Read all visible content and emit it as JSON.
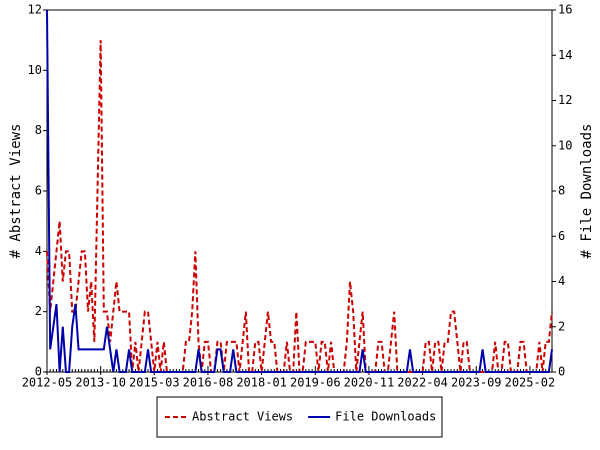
{
  "chart_data": {
    "type": "line",
    "categories": [
      "2012-05",
      null,
      null,
      null,
      null,
      null,
      null,
      null,
      null,
      null,
      null,
      null,
      null,
      null,
      null,
      null,
      null,
      "2013-10",
      null,
      null,
      null,
      null,
      null,
      null,
      null,
      null,
      null,
      null,
      null,
      null,
      null,
      null,
      null,
      null,
      "2015-03",
      null,
      null,
      null,
      null,
      null,
      null,
      null,
      null,
      null,
      null,
      null,
      null,
      null,
      null,
      null,
      null,
      "2016-08",
      null,
      null,
      null,
      null,
      null,
      null,
      null,
      null,
      null,
      null,
      null,
      null,
      null,
      null,
      null,
      null,
      "2018-01",
      null,
      null,
      null,
      null,
      null,
      null,
      null,
      null,
      null,
      null,
      null,
      null,
      null,
      null,
      null,
      null,
      "2019-06",
      null,
      null,
      null,
      null,
      null,
      null,
      null,
      null,
      null,
      null,
      null,
      null,
      null,
      null,
      null,
      null,
      "2020-11",
      null,
      null,
      null,
      null,
      null,
      null,
      null,
      null,
      null,
      null,
      null,
      null,
      null,
      null,
      null,
      null,
      "2022-04",
      null,
      null,
      null,
      null,
      null,
      null,
      null,
      null,
      null,
      null,
      null,
      null,
      null,
      null,
      null,
      null,
      "2023-09",
      null,
      null,
      null,
      null,
      null,
      null,
      null,
      null,
      null,
      null,
      null,
      null,
      null,
      null,
      null,
      null,
      "2025-02",
      null,
      null,
      null,
      null,
      null,
      null,
      null
    ],
    "series": [
      {
        "name": "Abstract Views",
        "color": "#cc0000",
        "dashed": true,
        "axis": "y",
        "values": [
          4,
          2,
          3,
          4,
          5,
          3,
          4,
          4,
          2,
          2,
          3,
          4,
          4,
          2,
          3,
          1,
          6,
          11,
          2,
          2,
          1,
          2,
          3,
          2,
          2,
          2,
          2,
          0,
          1,
          0,
          1,
          2,
          2,
          1,
          0,
          1,
          0,
          1,
          0,
          0,
          0,
          0,
          0,
          0,
          1,
          1,
          2,
          4,
          1,
          0,
          1,
          1,
          0,
          0,
          1,
          1,
          0,
          1,
          1,
          1,
          1,
          0,
          1,
          2,
          0,
          0,
          1,
          1,
          0,
          1,
          2,
          1,
          1,
          0,
          0,
          0,
          1,
          0,
          0,
          2,
          0,
          0,
          1,
          1,
          1,
          1,
          0,
          1,
          1,
          0,
          1,
          0,
          0,
          0,
          0,
          1,
          3,
          2,
          0,
          1,
          2,
          0,
          0,
          0,
          0,
          1,
          1,
          0,
          0,
          1,
          2,
          0,
          0,
          0,
          0,
          0,
          0,
          0,
          0,
          0,
          1,
          1,
          0,
          1,
          1,
          0,
          1,
          1,
          2,
          2,
          1,
          0,
          1,
          1,
          0,
          0,
          0,
          0,
          0,
          0,
          0,
          0,
          1,
          0,
          0,
          1,
          1,
          0,
          0,
          0,
          1,
          1,
          0,
          0,
          0,
          0,
          1,
          0,
          1,
          1,
          2
        ]
      },
      {
        "name": "File Downloads",
        "color": "#0000aa",
        "dashed": false,
        "axis": "y2",
        "values": [
          16,
          1,
          2,
          3,
          0,
          2,
          0,
          0,
          2,
          3,
          1,
          1,
          1,
          1,
          1,
          1,
          1,
          1,
          1,
          2,
          1,
          0,
          1,
          0,
          0,
          0,
          1,
          0,
          0,
          0,
          0,
          0,
          1,
          0,
          0,
          0,
          0,
          0,
          0,
          0,
          0,
          0,
          0,
          0,
          0,
          0,
          0,
          0,
          1,
          0,
          0,
          0,
          0,
          0,
          1,
          1,
          0,
          0,
          0,
          1,
          0,
          0,
          0,
          0,
          0,
          0,
          0,
          0,
          0,
          0,
          0,
          0,
          0,
          0,
          0,
          0,
          0,
          0,
          0,
          0,
          0,
          0,
          0,
          0,
          0,
          0,
          0,
          0,
          0,
          0,
          0,
          0,
          0,
          0,
          0,
          0,
          0,
          0,
          0,
          0,
          1,
          0,
          0,
          0,
          0,
          0,
          0,
          0,
          0,
          0,
          0,
          0,
          0,
          0,
          0,
          1,
          0,
          0,
          0,
          0,
          0,
          0,
          0,
          0,
          0,
          0,
          0,
          0,
          0,
          0,
          0,
          0,
          0,
          0,
          0,
          0,
          0,
          0,
          1,
          0,
          0,
          0,
          0,
          0,
          0,
          0,
          0,
          0,
          0,
          0,
          0,
          0,
          0,
          0,
          0,
          0,
          0,
          0,
          0,
          0,
          1
        ]
      }
    ],
    "ylabel": "# Abstract Views",
    "y2label": "# File Downloads",
    "ylim": [
      0,
      12
    ],
    "yticks": [
      0,
      2,
      4,
      6,
      8,
      10,
      12
    ],
    "y2lim": [
      0,
      16
    ],
    "y2ticks": [
      0,
      2,
      4,
      6,
      8,
      10,
      12,
      14,
      16
    ],
    "legend": "bottom"
  }
}
